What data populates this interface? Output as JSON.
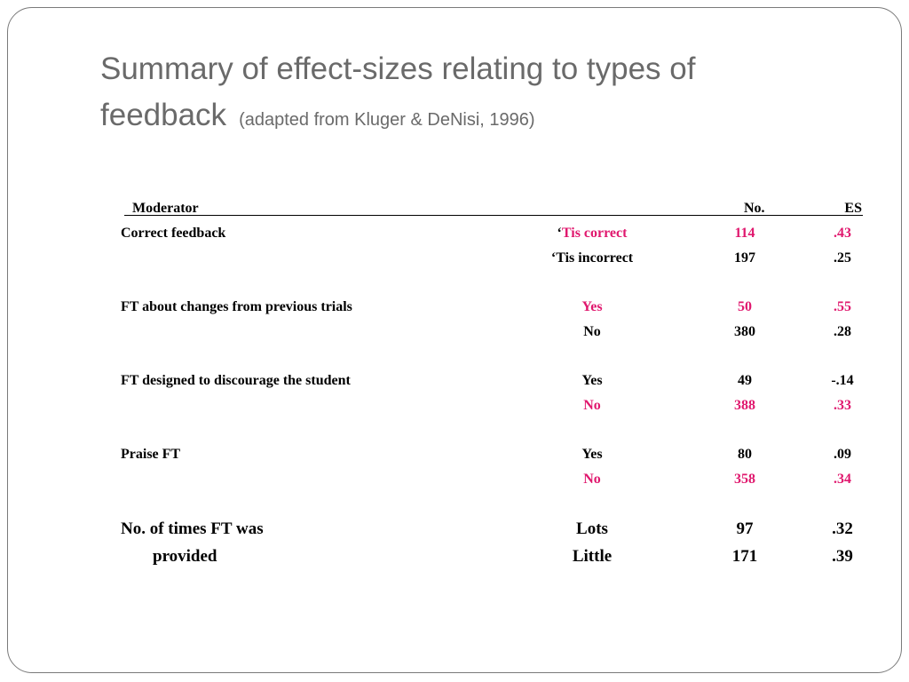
{
  "title": {
    "main": "Summary of effect-sizes relating to types of feedback",
    "sub": "(adapted from Kluger & DeNisi, 1996)"
  },
  "colors": {
    "highlight": "#e0186e",
    "title": "#6a6a6a"
  },
  "table": {
    "headers": {
      "moderator": "Moderator",
      "no": "No.",
      "es": "ES"
    },
    "rows": [
      {
        "moderator": "Correct feedback",
        "level": "Tis correct",
        "level_prefix": "‘",
        "no": "114",
        "es": ".43",
        "highlight": true
      },
      {
        "moderator": "",
        "level": "‘Tis incorrect",
        "no": "197",
        "es": ".25",
        "highlight": false
      },
      {
        "moderator": "FT about changes from previous trials",
        "level": "Yes",
        "no": "50",
        "es": ".55",
        "highlight": true
      },
      {
        "moderator": "",
        "level": "No",
        "no": "380",
        "es": ".28",
        "highlight": false
      },
      {
        "moderator": "FT designed to discourage the student",
        "level": "Yes",
        "no": "49",
        "es": "-.14",
        "highlight": false
      },
      {
        "moderator": "",
        "level": "No",
        "no": "388",
        "es": ".33",
        "highlight": true
      },
      {
        "moderator": "Praise FT",
        "level": "Yes",
        "no": "80",
        "es": ".09",
        "highlight": false
      },
      {
        "moderator": "",
        "level": "No",
        "no": "358",
        "es": ".34",
        "highlight": true
      },
      {
        "moderator": "No. of times FT was",
        "level": "Lots",
        "no": "97",
        "es": ".32",
        "highlight": false
      },
      {
        "moderator": "provided",
        "level": "Little",
        "no": "171",
        "es": ".39",
        "highlight": false
      }
    ]
  }
}
